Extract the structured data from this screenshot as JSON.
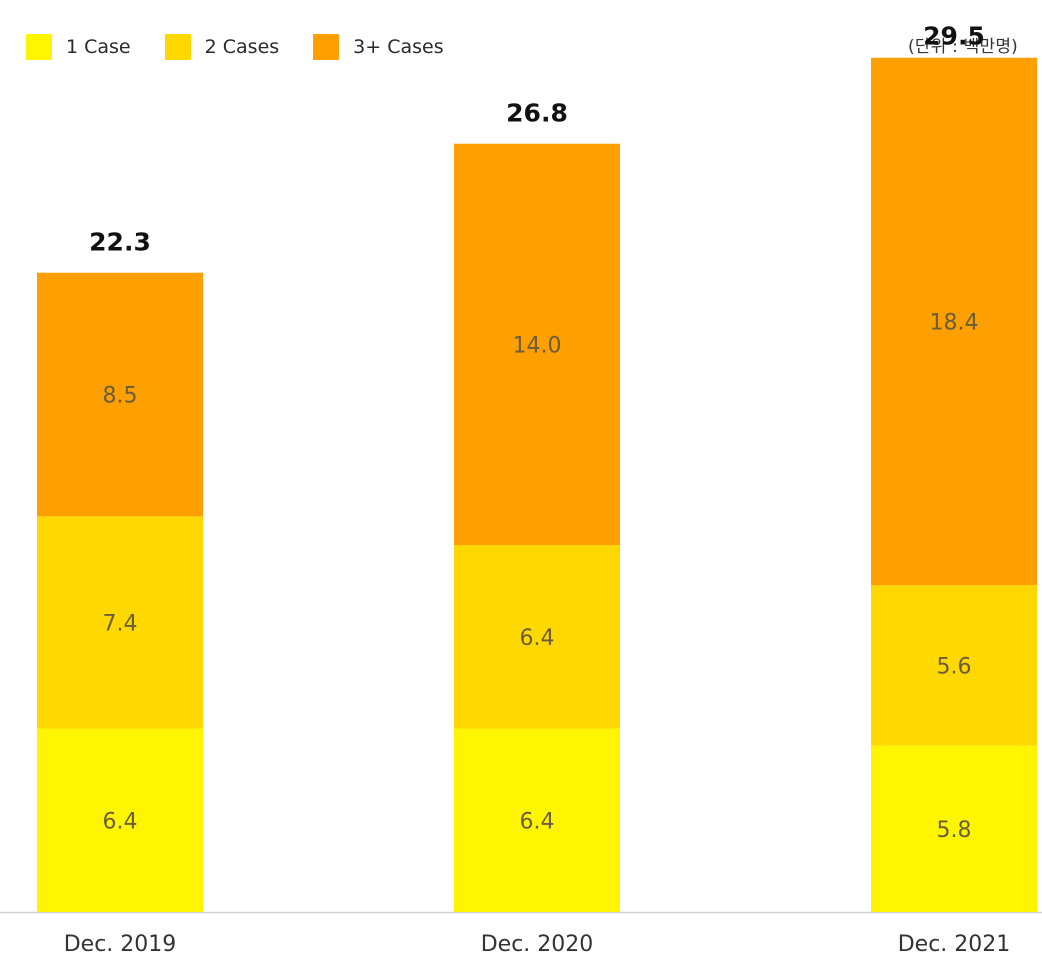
{
  "unit_label": "(단위 : 백만명)",
  "colors": {
    "one_case": "#FFF500",
    "two_cases": "#FFD800",
    "three_plus_cases": "#FF9F00",
    "baseline": "#cfcfcf"
  },
  "legend": [
    {
      "label": "1 Case",
      "color": "#FFF500"
    },
    {
      "label": "2 Cases",
      "color": "#FFD800"
    },
    {
      "label": "3+ Cases",
      "color": "#FF9F00"
    }
  ],
  "chart_data": {
    "type": "bar",
    "stacked": true,
    "categories": [
      "Dec. 2019",
      "Dec. 2020",
      "Dec. 2021"
    ],
    "series": [
      {
        "name": "1 Case",
        "values": [
          6.4,
          6.4,
          5.8
        ]
      },
      {
        "name": "2 Cases",
        "values": [
          7.4,
          6.4,
          5.6
        ]
      },
      {
        "name": "3+ Cases",
        "values": [
          8.5,
          14.0,
          18.4
        ]
      }
    ],
    "totals": [
      22.3,
      26.8,
      29.5
    ],
    "segment_labels": [
      [
        "6.4",
        "7.4",
        "8.5"
      ],
      [
        "6.4",
        "6.4",
        "14.0"
      ],
      [
        "5.8",
        "5.6",
        "18.4"
      ]
    ],
    "total_labels": [
      "22.3",
      "26.8",
      "29.5"
    ],
    "title": "",
    "xlabel": "",
    "ylabel": "",
    "ylim": [
      0,
      30
    ],
    "grid": false,
    "legend_position": "top-left"
  }
}
